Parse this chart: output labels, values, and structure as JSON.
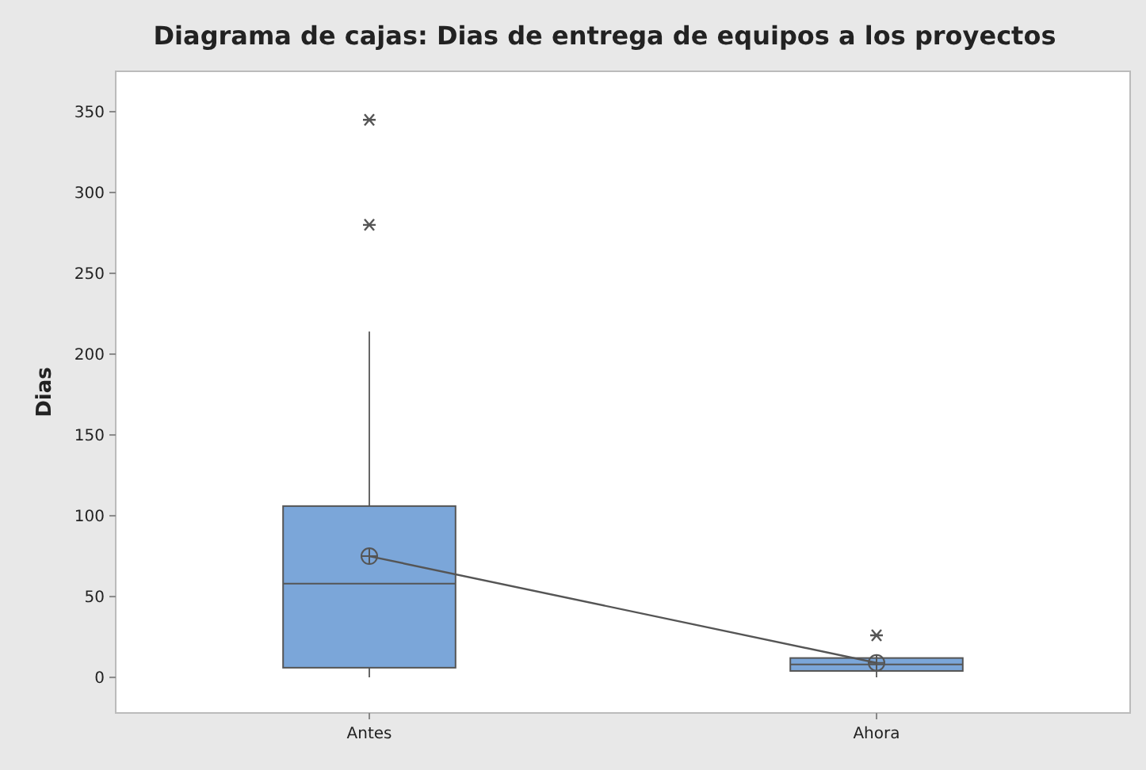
{
  "chart_data": {
    "type": "box",
    "title": "Diagrama de cajas: Dias de entrega de equipos a los proyectos",
    "ylabel": "Dias",
    "categories": [
      "Antes",
      "Ahora"
    ],
    "boxes": [
      {
        "low": 0,
        "q1": 6,
        "median": 58,
        "q3": 106,
        "high": 214,
        "mean": 75,
        "outliers": [
          280,
          345
        ]
      },
      {
        "low": 0,
        "q1": 4,
        "median": 8,
        "q3": 12,
        "high": 14,
        "mean": 9,
        "outliers": [
          26
        ]
      }
    ],
    "color": "#7ba6d9",
    "series": [
      {
        "type": "line",
        "values": [
          75,
          9
        ],
        "color": "#555555"
      }
    ],
    "ylim": [
      -22,
      375
    ],
    "yticks": [
      0,
      50,
      100,
      150,
      200,
      250,
      300,
      350
    ],
    "grid": false
  }
}
